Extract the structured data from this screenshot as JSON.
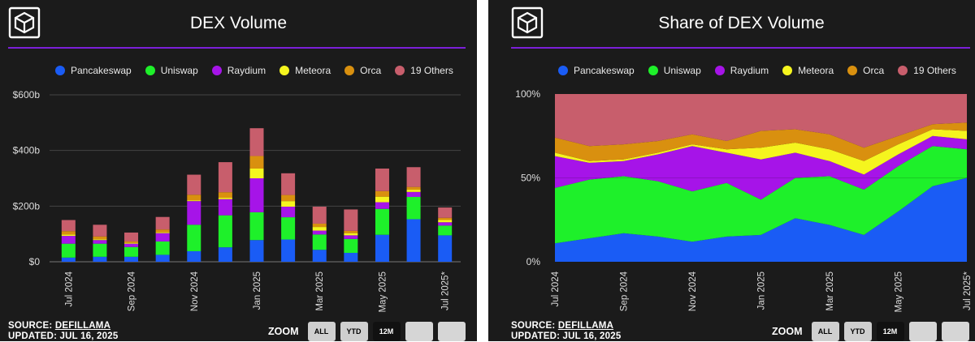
{
  "left": {
    "title": "DEX Volume",
    "legend": [
      "Pancakeswap",
      "Uniswap",
      "Raydium",
      "Meteora",
      "Orca",
      "19 Others"
    ],
    "source_label": "SOURCE:",
    "source_link": "DEFILLAMA",
    "updated": "UPDATED: JUL 16, 2025",
    "zoom_label": "ZOOM",
    "zoom_buttons": [
      "ALL",
      "YTD",
      "12M",
      "",
      ""
    ]
  },
  "right": {
    "title": "Share of DEX Volume",
    "legend": [
      "Pancakeswap",
      "Uniswap",
      "Raydium",
      "Meteora",
      "Orca",
      "19 Others"
    ],
    "source_label": "SOURCE:",
    "source_link": "DEFILLAMA",
    "updated": "UPDATED: JUL 16, 2025",
    "zoom_label": "ZOOM",
    "zoom_buttons": [
      "ALL",
      "YTD",
      "12M",
      "",
      ""
    ]
  },
  "colors": {
    "Pancakeswap": "#1a5cf5",
    "Uniswap": "#1ef02a",
    "Raydium": "#a614e8",
    "Meteora": "#f5f51e",
    "Orca": "#d9900f",
    "19 Others": "#c85e6c",
    "accent_rule": "#7b1fd9",
    "panel_bg": "#1b1b1b",
    "grid": "#444444"
  },
  "chart_data": [
    {
      "type": "bar",
      "stacked": true,
      "title": "DEX Volume",
      "categories": [
        "Jul 2024",
        "Aug 2024",
        "Sep 2024",
        "Oct 2024",
        "Nov 2024",
        "Dec 2024",
        "Jan 2025",
        "Feb 2025",
        "Mar 2025",
        "Apr 2025",
        "May 2025",
        "Jun 2025",
        "Jul 2025*"
      ],
      "x_tick_labels": [
        "Jul 2024",
        "Sep 2024",
        "Nov 2024",
        "Jan 2025",
        "Mar 2025",
        "May 2025",
        "Jul 2025*"
      ],
      "y_tick_labels": [
        "$0",
        "$200b",
        "$400b",
        "$600b"
      ],
      "ylim": [
        0,
        600
      ],
      "grid": true,
      "legend_position": "top",
      "series": [
        {
          "name": "Pancakeswap",
          "values": [
            15,
            18,
            18,
            25,
            38,
            52,
            78,
            80,
            43,
            32,
            97,
            153,
            95
          ]
        },
        {
          "name": "Uniswap",
          "values": [
            50,
            47,
            35,
            48,
            95,
            115,
            100,
            80,
            55,
            50,
            93,
            80,
            35
          ]
        },
        {
          "name": "Raydium",
          "values": [
            28,
            13,
            12,
            30,
            85,
            58,
            122,
            38,
            14,
            13,
            24,
            18,
            12
          ]
        },
        {
          "name": "Meteora",
          "values": [
            5,
            3,
            3,
            3,
            3,
            5,
            35,
            20,
            13,
            8,
            20,
            8,
            8
          ]
        },
        {
          "name": "Orca",
          "values": [
            12,
            10,
            5,
            10,
            20,
            20,
            45,
            22,
            12,
            8,
            20,
            10,
            8
          ]
        },
        {
          "name": "19 Others",
          "values": [
            40,
            42,
            32,
            45,
            72,
            108,
            100,
            78,
            61,
            77,
            81,
            71,
            37
          ]
        }
      ]
    },
    {
      "type": "area",
      "stacked": true,
      "normalized": true,
      "title": "Share of DEX Volume",
      "x": [
        "Jul 2024",
        "Aug 2024",
        "Sep 2024",
        "Oct 2024",
        "Nov 2024",
        "Dec 2024",
        "Jan 2025",
        "Feb 2025",
        "Mar 2025",
        "Apr 2025",
        "May 2025",
        "Jun 2025",
        "Jul 2025*"
      ],
      "x_tick_labels": [
        "Jul 2024",
        "Sep 2024",
        "Nov 2024",
        "Jan 2025",
        "Mar 2025",
        "May 2025",
        "Jul 2025*"
      ],
      "y_tick_labels": [
        "0%",
        "50%",
        "100%"
      ],
      "ylim": [
        0,
        100
      ],
      "grid": true,
      "legend_position": "top",
      "series": [
        {
          "name": "Pancakeswap",
          "values": [
            11,
            14,
            17,
            15,
            12,
            15,
            16,
            26,
            22,
            16,
            30,
            45,
            50
          ]
        },
        {
          "name": "Uniswap",
          "values": [
            33,
            35,
            34,
            33,
            30,
            32,
            21,
            24,
            29,
            27,
            27,
            24,
            17
          ]
        },
        {
          "name": "Raydium",
          "values": [
            19,
            10,
            9,
            16,
            27,
            18,
            24,
            15,
            9,
            9,
            7,
            6,
            6
          ]
        },
        {
          "name": "Meteora",
          "values": [
            2,
            1,
            1,
            1,
            1,
            2,
            7,
            6,
            7,
            8,
            6,
            4,
            5
          ]
        },
        {
          "name": "Orca",
          "values": [
            9,
            9,
            9,
            7,
            6,
            5,
            10,
            8,
            9,
            8,
            5,
            3,
            5
          ]
        },
        {
          "name": "19 Others",
          "values": [
            26,
            31,
            30,
            28,
            24,
            28,
            22,
            21,
            24,
            32,
            25,
            18,
            17
          ]
        }
      ]
    }
  ]
}
